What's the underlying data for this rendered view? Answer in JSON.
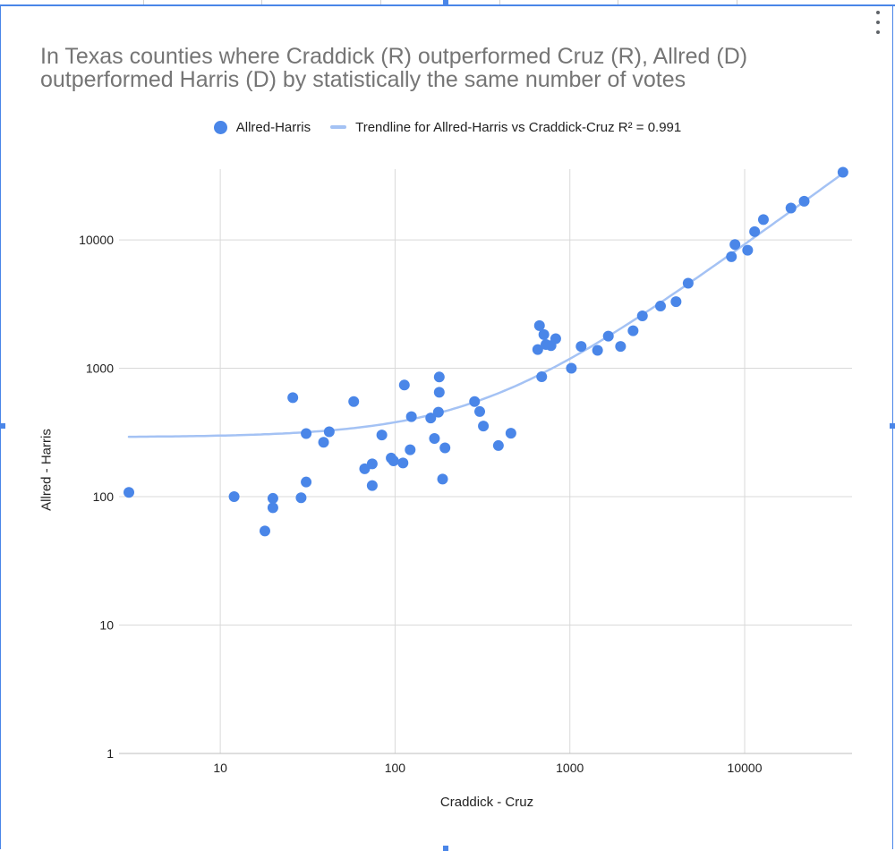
{
  "chart_data": {
    "type": "scatter",
    "title": "In Texas counties where Craddick (R) outperformed Cruz (R), Allred (D) outperformed Harris (D) by statistically the same number of votes",
    "xlabel": "Craddick - Cruz",
    "ylabel": "Allred - Harris",
    "x_scale": "log",
    "y_scale": "log",
    "xlim": [
      3,
      37000
    ],
    "ylim": [
      1,
      35000
    ],
    "x_ticks": [
      "10",
      "100",
      "1000",
      "10000"
    ],
    "y_ticks": [
      "1",
      "10",
      "100",
      "1000",
      "10000"
    ],
    "grid": true,
    "legend_position": "top",
    "series": [
      {
        "name": "Allred-Harris",
        "color": "#4a86e8",
        "points": [
          [
            3,
            108
          ],
          [
            12,
            100
          ],
          [
            18,
            54
          ],
          [
            20,
            97
          ],
          [
            20,
            82
          ],
          [
            26,
            590
          ],
          [
            29,
            98
          ],
          [
            31,
            310
          ],
          [
            31,
            130
          ],
          [
            39,
            265
          ],
          [
            42,
            320
          ],
          [
            58,
            550
          ],
          [
            67,
            165
          ],
          [
            74,
            180
          ],
          [
            74,
            122
          ],
          [
            84,
            302
          ],
          [
            95,
            200
          ],
          [
            98,
            190
          ],
          [
            111,
            183
          ],
          [
            113,
            740
          ],
          [
            122,
            232
          ],
          [
            124,
            420
          ],
          [
            160,
            410
          ],
          [
            168,
            284
          ],
          [
            177,
            455
          ],
          [
            179,
            650
          ],
          [
            179,
            855
          ],
          [
            187,
            137
          ],
          [
            193,
            240
          ],
          [
            285,
            550
          ],
          [
            305,
            460
          ],
          [
            320,
            355
          ],
          [
            390,
            250
          ],
          [
            460,
            312
          ],
          [
            655,
            1400
          ],
          [
            670,
            2150
          ],
          [
            690,
            860
          ],
          [
            710,
            1830
          ],
          [
            730,
            1530
          ],
          [
            780,
            1500
          ],
          [
            830,
            1700
          ],
          [
            1020,
            1000
          ],
          [
            1160,
            1480
          ],
          [
            1440,
            1380
          ],
          [
            1660,
            1780
          ],
          [
            1950,
            1480
          ],
          [
            2300,
            1960
          ],
          [
            2600,
            2560
          ],
          [
            3300,
            3050
          ],
          [
            4050,
            3300
          ],
          [
            4750,
            4600
          ],
          [
            8400,
            7400
          ],
          [
            8800,
            9200
          ],
          [
            10400,
            8300
          ],
          [
            11400,
            11600
          ],
          [
            12800,
            14400
          ],
          [
            18400,
            17700
          ],
          [
            21900,
            20000
          ],
          [
            36500,
            33600
          ]
        ]
      }
    ],
    "trendline": {
      "name": "Trendline for Allred-Harris vs Craddick-Cruz R² = 0.991",
      "color": "#a4c2f4",
      "model": "linear",
      "slope": 0.896,
      "intercept": 290
    }
  },
  "colors": {
    "accent": "#4a86e8",
    "trendline": "#a4c2f4",
    "grid": "#d9d9d9",
    "title": "#757575"
  },
  "icons": {
    "menu": "more-vert-icon"
  }
}
